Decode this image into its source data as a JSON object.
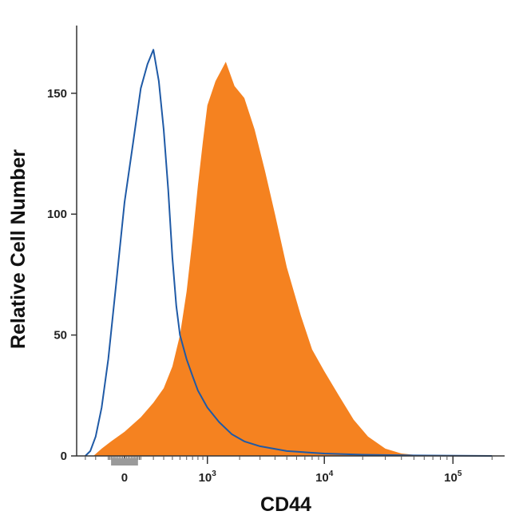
{
  "chart_data": {
    "type": "area",
    "xlabel": "CD44",
    "ylabel": "Relative Cell Number",
    "x_scale": "biexponential",
    "xlim": [
      -400,
      250000
    ],
    "ylim": [
      0,
      178
    ],
    "y_ticks": [
      0,
      50,
      100,
      150
    ],
    "y_tick_labels": [
      "0",
      "50",
      "100",
      "150"
    ],
    "x_tick_labels": [
      {
        "value": 0,
        "base": "0",
        "exp": ""
      },
      {
        "value": 1000,
        "base": "10",
        "exp": "3"
      },
      {
        "value": 10000,
        "base": "10",
        "exp": "4"
      },
      {
        "value": 100000,
        "base": "10",
        "exp": "5"
      }
    ],
    "grid": false,
    "series": [
      {
        "style": "filled",
        "color": "#f58220",
        "x": [
          -220,
          -150,
          -80,
          0,
          100,
          200,
          300,
          400,
          500,
          600,
          700,
          800,
          900,
          1000,
          1200,
          1500,
          1800,
          2200,
          2700,
          3300,
          4000,
          5000,
          6500,
          8000,
          10000,
          13000,
          17000,
          22000,
          30000,
          40000,
          60000
        ],
        "values": [
          0,
          3,
          6,
          10,
          16,
          22,
          28,
          37,
          50,
          68,
          90,
          112,
          130,
          145,
          155,
          163,
          153,
          148,
          135,
          118,
          100,
          78,
          58,
          44,
          35,
          25,
          15,
          8,
          3,
          1,
          0
        ]
      },
      {
        "style": "outline",
        "color": "#1f5aa6",
        "x": [
          -300,
          -250,
          -200,
          -150,
          -100,
          -50,
          0,
          50,
          100,
          150,
          200,
          250,
          300,
          350,
          400,
          450,
          500,
          600,
          700,
          800,
          1000,
          1300,
          1700,
          2200,
          3000,
          5000,
          10000,
          20000,
          50000,
          200000
        ],
        "values": [
          0,
          2,
          8,
          20,
          40,
          70,
          105,
          130,
          152,
          162,
          168,
          155,
          135,
          110,
          82,
          62,
          50,
          40,
          33,
          27,
          20,
          14,
          9,
          6,
          4,
          2,
          1,
          0.5,
          0.2,
          0
        ]
      }
    ]
  }
}
